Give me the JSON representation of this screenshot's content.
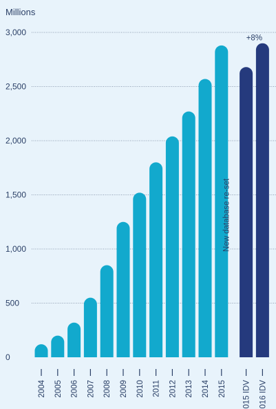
{
  "chart_data": {
    "type": "bar",
    "y_unit_label": "Millions",
    "ylim": [
      0,
      3000
    ],
    "yticks": [
      "0",
      "500",
      "1,000",
      "1,500",
      "2,000",
      "2,500",
      "3,000"
    ],
    "ytick_values": [
      0,
      500,
      1000,
      1500,
      2000,
      2500,
      3000
    ],
    "grid": "horizontal-dotted",
    "series": [
      {
        "color": "#12a9cd",
        "categories": [
          "2004",
          "2005",
          "2006",
          "2007",
          "2008",
          "2009",
          "2010",
          "2011",
          "2012",
          "2013",
          "2014",
          "2015"
        ],
        "values": [
          120,
          200,
          320,
          550,
          850,
          1250,
          1520,
          1800,
          2040,
          2270,
          2570,
          2880
        ]
      },
      {
        "color": "#253a7d",
        "categories": [
          "2015 IDV",
          "2016 IDV"
        ],
        "values": [
          2680,
          2900
        ]
      }
    ],
    "annotations": {
      "reset_label": "New database re-set",
      "growth_label": "+8%"
    }
  }
}
